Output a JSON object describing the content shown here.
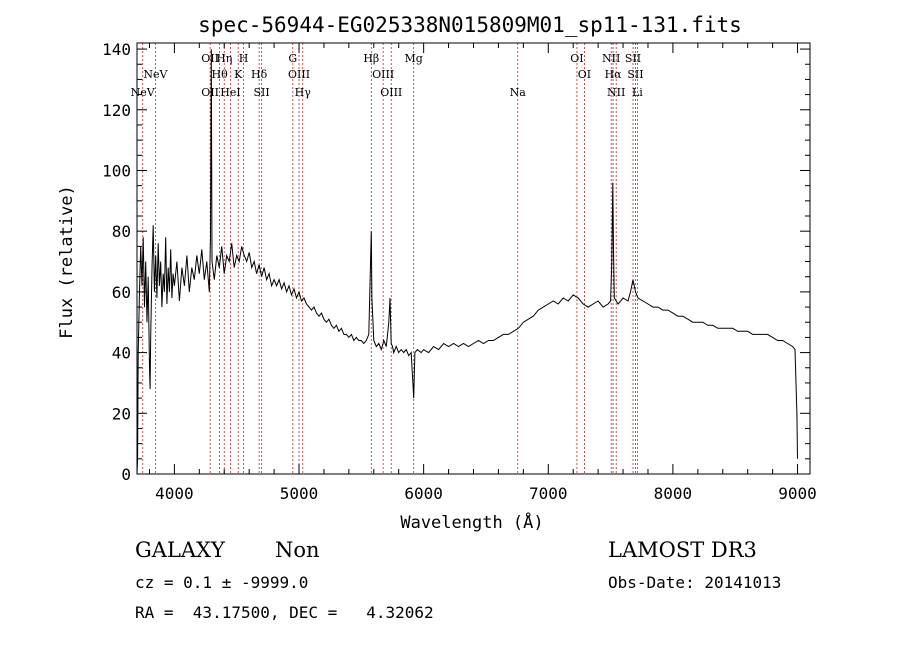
{
  "chart_data": {
    "type": "line",
    "title": "spec-56944-EG025338N015809M01_sp11-131.fits",
    "xlabel": "Wavelength (Å)",
    "ylabel": "Flux (relative)",
    "xlim": [
      3700,
      9100
    ],
    "ylim": [
      0,
      142
    ],
    "x_ticks": [
      4000,
      5000,
      6000,
      7000,
      8000,
      9000
    ],
    "y_ticks": [
      0,
      20,
      40,
      60,
      80,
      100,
      120,
      140
    ],
    "grid": false,
    "line_color": "#000000",
    "marker_color": "#cc2222",
    "series": [
      {
        "values": [
          [
            3700,
            0
          ],
          [
            3705,
            5
          ],
          [
            3710,
            40
          ],
          [
            3720,
            60
          ],
          [
            3730,
            75
          ],
          [
            3740,
            62
          ],
          [
            3750,
            78
          ],
          [
            3760,
            55
          ],
          [
            3770,
            70
          ],
          [
            3780,
            50
          ],
          [
            3790,
            65
          ],
          [
            3800,
            35
          ],
          [
            3805,
            28
          ],
          [
            3810,
            45
          ],
          [
            3820,
            68
          ],
          [
            3830,
            82
          ],
          [
            3840,
            60
          ],
          [
            3850,
            72
          ],
          [
            3860,
            58
          ],
          [
            3870,
            76
          ],
          [
            3880,
            62
          ],
          [
            3890,
            70
          ],
          [
            3900,
            55
          ],
          [
            3910,
            66
          ],
          [
            3920,
            60
          ],
          [
            3930,
            78
          ],
          [
            3940,
            56
          ],
          [
            3950,
            68
          ],
          [
            3960,
            60
          ],
          [
            3970,
            74
          ],
          [
            3980,
            58
          ],
          [
            3990,
            66
          ],
          [
            4000,
            62
          ],
          [
            4020,
            70
          ],
          [
            4040,
            57
          ],
          [
            4060,
            68
          ],
          [
            4080,
            62
          ],
          [
            4100,
            72
          ],
          [
            4120,
            60
          ],
          [
            4140,
            68
          ],
          [
            4160,
            64
          ],
          [
            4180,
            72
          ],
          [
            4200,
            66
          ],
          [
            4220,
            74
          ],
          [
            4240,
            64
          ],
          [
            4260,
            70
          ],
          [
            4280,
            60
          ],
          [
            4290,
            78
          ],
          [
            4296,
            140
          ],
          [
            4302,
            70
          ],
          [
            4320,
            64
          ],
          [
            4340,
            72
          ],
          [
            4360,
            68
          ],
          [
            4380,
            75
          ],
          [
            4400,
            66
          ],
          [
            4420,
            72
          ],
          [
            4440,
            70
          ],
          [
            4460,
            76
          ],
          [
            4480,
            68
          ],
          [
            4500,
            72
          ],
          [
            4520,
            70
          ],
          [
            4540,
            75
          ],
          [
            4560,
            72
          ],
          [
            4580,
            70
          ],
          [
            4600,
            73
          ],
          [
            4620,
            68
          ],
          [
            4640,
            70
          ],
          [
            4660,
            66
          ],
          [
            4680,
            69
          ],
          [
            4700,
            65
          ],
          [
            4720,
            68
          ],
          [
            4740,
            64
          ],
          [
            4760,
            66
          ],
          [
            4780,
            62
          ],
          [
            4800,
            64
          ],
          [
            4820,
            62
          ],
          [
            4840,
            64
          ],
          [
            4860,
            61
          ],
          [
            4880,
            63
          ],
          [
            4900,
            60
          ],
          [
            4920,
            62
          ],
          [
            4940,
            59
          ],
          [
            4960,
            61
          ],
          [
            4980,
            58
          ],
          [
            5000,
            60
          ],
          [
            5020,
            57
          ],
          [
            5040,
            58
          ],
          [
            5060,
            56
          ],
          [
            5080,
            55
          ],
          [
            5100,
            54
          ],
          [
            5120,
            55
          ],
          [
            5140,
            53
          ],
          [
            5160,
            52
          ],
          [
            5180,
            53
          ],
          [
            5200,
            51
          ],
          [
            5220,
            50
          ],
          [
            5240,
            51
          ],
          [
            5260,
            49
          ],
          [
            5280,
            48
          ],
          [
            5300,
            49
          ],
          [
            5320,
            47
          ],
          [
            5340,
            48
          ],
          [
            5360,
            46
          ],
          [
            5380,
            46
          ],
          [
            5400,
            45
          ],
          [
            5420,
            46
          ],
          [
            5440,
            44
          ],
          [
            5460,
            45
          ],
          [
            5480,
            44
          ],
          [
            5500,
            44
          ],
          [
            5520,
            43
          ],
          [
            5540,
            44
          ],
          [
            5560,
            46
          ],
          [
            5575,
            72
          ],
          [
            5580,
            80
          ],
          [
            5585,
            58
          ],
          [
            5600,
            44
          ],
          [
            5620,
            42
          ],
          [
            5640,
            43
          ],
          [
            5660,
            41
          ],
          [
            5680,
            44
          ],
          [
            5700,
            42
          ],
          [
            5720,
            50
          ],
          [
            5730,
            58
          ],
          [
            5740,
            43
          ],
          [
            5750,
            42
          ],
          [
            5760,
            40
          ],
          [
            5780,
            42
          ],
          [
            5800,
            40
          ],
          [
            5820,
            41
          ],
          [
            5840,
            40
          ],
          [
            5860,
            41
          ],
          [
            5880,
            39
          ],
          [
            5900,
            40
          ],
          [
            5920,
            25
          ],
          [
            5930,
            40
          ],
          [
            5950,
            41
          ],
          [
            5980,
            40
          ],
          [
            6000,
            41
          ],
          [
            6040,
            40
          ],
          [
            6080,
            42
          ],
          [
            6120,
            41
          ],
          [
            6160,
            43
          ],
          [
            6200,
            42
          ],
          [
            6240,
            43
          ],
          [
            6280,
            42
          ],
          [
            6320,
            43
          ],
          [
            6360,
            42
          ],
          [
            6400,
            43
          ],
          [
            6440,
            44
          ],
          [
            6480,
            43
          ],
          [
            6520,
            44
          ],
          [
            6560,
            44
          ],
          [
            6600,
            45
          ],
          [
            6640,
            46
          ],
          [
            6680,
            46
          ],
          [
            6720,
            47
          ],
          [
            6760,
            48
          ],
          [
            6800,
            50
          ],
          [
            6840,
            51
          ],
          [
            6880,
            52
          ],
          [
            6920,
            54
          ],
          [
            6960,
            55
          ],
          [
            7000,
            56
          ],
          [
            7040,
            57
          ],
          [
            7080,
            56
          ],
          [
            7120,
            58
          ],
          [
            7160,
            57
          ],
          [
            7200,
            59
          ],
          [
            7240,
            58
          ],
          [
            7280,
            56
          ],
          [
            7320,
            55
          ],
          [
            7360,
            56
          ],
          [
            7400,
            57
          ],
          [
            7440,
            55
          ],
          [
            7480,
            56
          ],
          [
            7500,
            57
          ],
          [
            7510,
            70
          ],
          [
            7518,
            96
          ],
          [
            7524,
            72
          ],
          [
            7530,
            58
          ],
          [
            7560,
            56
          ],
          [
            7600,
            58
          ],
          [
            7640,
            57
          ],
          [
            7660,
            60
          ],
          [
            7680,
            64
          ],
          [
            7700,
            60
          ],
          [
            7720,
            58
          ],
          [
            7760,
            57
          ],
          [
            7800,
            56
          ],
          [
            7840,
            55
          ],
          [
            7880,
            55
          ],
          [
            7920,
            54
          ],
          [
            7960,
            54
          ],
          [
            8000,
            53
          ],
          [
            8040,
            52
          ],
          [
            8080,
            52
          ],
          [
            8120,
            51
          ],
          [
            8160,
            50
          ],
          [
            8200,
            50
          ],
          [
            8240,
            50
          ],
          [
            8280,
            49
          ],
          [
            8320,
            49
          ],
          [
            8360,
            48
          ],
          [
            8400,
            48
          ],
          [
            8440,
            48
          ],
          [
            8480,
            48
          ],
          [
            8520,
            47
          ],
          [
            8560,
            47
          ],
          [
            8600,
            47
          ],
          [
            8640,
            46
          ],
          [
            8680,
            46
          ],
          [
            8720,
            46
          ],
          [
            8760,
            46
          ],
          [
            8800,
            45
          ],
          [
            8840,
            44
          ],
          [
            8880,
            44
          ],
          [
            8920,
            43
          ],
          [
            8960,
            42
          ],
          [
            8980,
            41
          ],
          [
            8995,
            20
          ],
          [
            9000,
            5
          ]
        ]
      }
    ],
    "lines": [
      {
        "name": "NeV",
        "x": 3746,
        "label_row": 2
      },
      {
        "name": "NeV",
        "x": 3848,
        "label_row": 1
      },
      {
        "name": "OII",
        "x": 4287,
        "label_row": 0
      },
      {
        "name": "OII",
        "x": 4287,
        "label_row": 2
      },
      {
        "name": "Hθ",
        "x": 4363,
        "label_row": 1
      },
      {
        "name": "Hη",
        "x": 4400,
        "label_row": 0
      },
      {
        "name": "HeI",
        "x": 4450,
        "label_row": 2
      },
      {
        "name": "K",
        "x": 4512,
        "label_row": 1
      },
      {
        "name": "H",
        "x": 4555,
        "label_row": 0
      },
      {
        "name": "Hδ",
        "x": 4680,
        "label_row": 1
      },
      {
        "name": "SII",
        "x": 4700,
        "label_row": 2
      },
      {
        "name": "G",
        "x": 4950,
        "label_row": 0
      },
      {
        "name": "OIII",
        "x": 5000,
        "label_row": 1
      },
      {
        "name": "Hγ",
        "x": 5030,
        "label_row": 2
      },
      {
        "name": "Hβ",
        "x": 5580,
        "label_row": 0
      },
      {
        "name": "OIII",
        "x": 5675,
        "label_row": 1
      },
      {
        "name": "OIII",
        "x": 5740,
        "label_row": 2
      },
      {
        "name": "Mg",
        "x": 5920,
        "label_row": 0
      },
      {
        "name": "Na",
        "x": 6755,
        "label_row": 2
      },
      {
        "name": "OI",
        "x": 7230,
        "label_row": 0
      },
      {
        "name": "OI",
        "x": 7290,
        "label_row": 1
      },
      {
        "name": "NII",
        "x": 7505,
        "label_row": 0
      },
      {
        "name": "Hα",
        "x": 7520,
        "label_row": 1
      },
      {
        "name": "NII",
        "x": 7545,
        "label_row": 2
      },
      {
        "name": "SII",
        "x": 7680,
        "label_row": 0
      },
      {
        "name": "SII",
        "x": 7700,
        "label_row": 1
      },
      {
        "name": "Li",
        "x": 7715,
        "label_row": 2
      }
    ]
  },
  "info": {
    "classification": "GALAXY",
    "subclass": "Non",
    "survey": "LAMOST DR3",
    "cz": "cz = 0.1 ± -9999.0",
    "obs_date": "Obs-Date: 20141013",
    "coords": "RA =  43.17500, DEC =   4.32062"
  }
}
